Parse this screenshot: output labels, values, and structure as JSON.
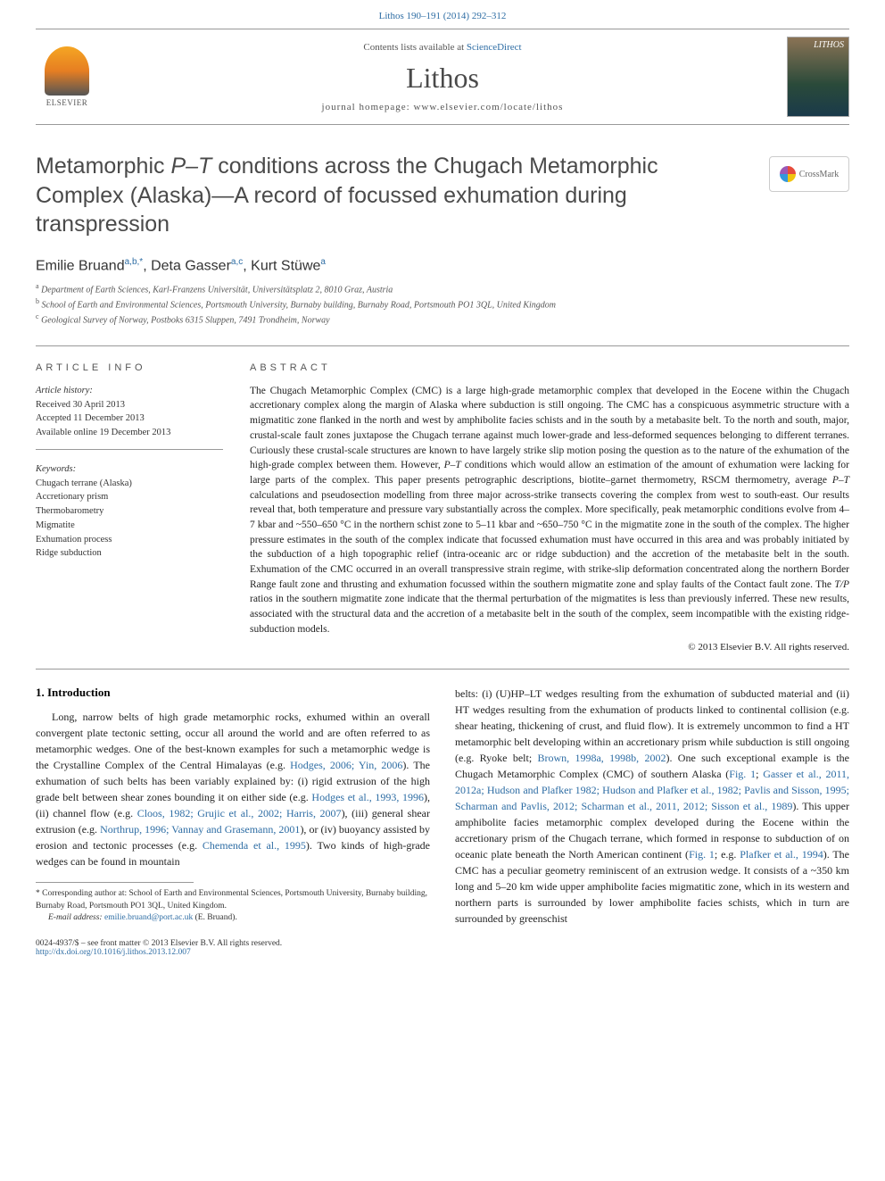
{
  "header": {
    "citation_link": "Lithos 190–191 (2014) 292–312",
    "contents_text_prefix": "Contents lists available at ",
    "contents_link": "ScienceDirect",
    "journal_name": "Lithos",
    "homepage_label": "journal homepage: ",
    "homepage_url": "www.elsevier.com/locate/lithos",
    "elsevier_label": "ELSEVIER",
    "cover_label": "LITHOS"
  },
  "article": {
    "title_pre": "Metamorphic ",
    "title_pt": "P–T",
    "title_post": " conditions across the Chugach Metamorphic Complex (Alaska)—A record of focussed exhumation during transpression",
    "crossmark": "CrossMark"
  },
  "authors": {
    "a1_name": "Emilie Bruand",
    "a1_aff": "a,b,",
    "a1_star": "*",
    "sep1": ", ",
    "a2_name": "Deta Gasser",
    "a2_aff": "a,c",
    "sep2": ", ",
    "a3_name": "Kurt Stüwe",
    "a3_aff": "a"
  },
  "affiliations": {
    "a_sup": "a",
    "a_text": " Department of Earth Sciences, Karl-Franzens Universität, Universitätsplatz 2, 8010 Graz, Austria",
    "b_sup": "b",
    "b_text": " School of Earth and Environmental Sciences, Portsmouth University, Burnaby building, Burnaby Road, Portsmouth PO1 3QL, United Kingdom",
    "c_sup": "c",
    "c_text": " Geological Survey of Norway, Postboks 6315 Sluppen, 7491 Trondheim, Norway"
  },
  "article_info": {
    "heading": "article info",
    "history_label": "Article history:",
    "received": "Received 30 April 2013",
    "accepted": "Accepted 11 December 2013",
    "online": "Available online 19 December 2013",
    "keywords_label": "Keywords:",
    "kw1": "Chugach terrane (Alaska)",
    "kw2": "Accretionary prism",
    "kw3": "Thermobarometry",
    "kw4": "Migmatite",
    "kw5": "Exhumation process",
    "kw6": "Ridge subduction"
  },
  "abstract": {
    "heading": "abstract",
    "text_1": "The Chugach Metamorphic Complex (CMC) is a large high-grade metamorphic complex that developed in the Eocene within the Chugach accretionary complex along the margin of Alaska where subduction is still ongoing. The CMC has a conspicuous asymmetric structure with a migmatitic zone flanked in the north and west by amphibolite facies schists and in the south by a metabasite belt. To the north and south, major, crustal-scale fault zones juxtapose the Chugach terrane against much lower-grade and less-deformed sequences belonging to different terranes. Curiously these crustal-scale structures are known to have largely strike slip motion posing the question as to the nature of the exhumation of the high-grade complex between them. However, ",
    "pt1": "P–T",
    "text_2": " conditions which would allow an estimation of the amount of exhumation were lacking for large parts of the complex. This paper presents petrographic descriptions, biotite–garnet thermometry, RSCM thermometry, average ",
    "pt2": "P–T",
    "text_3": " calculations and pseudosection modelling from three major across-strike transects covering the complex from west to south-east. Our results reveal that, both temperature and pressure vary substantially across the complex. More specifically, peak metamorphic conditions evolve from 4–7 kbar and ~550–650 °C in the northern schist zone to 5–11 kbar and ~650–750 °C in the migmatite zone in the south of the complex. The higher pressure estimates in the south of the complex indicate that focussed exhumation must have occurred in this area and was probably initiated by the subduction of a high topographic relief (intra-oceanic arc or ridge subduction) and the accretion of the metabasite belt in the south. Exhumation of the CMC occurred in an overall transpressive strain regime, with strike-slip deformation concentrated along the northern Border Range fault zone and thrusting and exhumation focussed within the southern migmatite zone and splay faults of the Contact fault zone. The ",
    "tp": "T/P",
    "text_4": " ratios in the southern migmatite zone indicate that the thermal perturbation of the migmatites is less than previously inferred. These new results, associated with the structural data and the accretion of a metabasite belt in the south of the complex, seem incompatible with the existing ridge-subduction models.",
    "copyright": "© 2013 Elsevier B.V. All rights reserved."
  },
  "intro": {
    "heading": "1. Introduction",
    "col1_p1_a": "Long, narrow belts of high grade metamorphic rocks, exhumed within an overall convergent plate tectonic setting, occur all around the world and are often referred to as metamorphic wedges. One of the best-known examples for such a metamorphic wedge is the Crystalline Complex of the Central Himalayas (e.g. ",
    "ref1": "Hodges, 2006; Yin, 2006",
    "col1_p1_b": "). The exhumation of such belts has been variably explained by: (i) rigid extrusion of the high grade belt between shear zones bounding it on either side (e.g. ",
    "ref2": "Hodges et al., 1993, 1996",
    "col1_p1_c": "), (ii) channel flow (e.g. ",
    "ref3": "Cloos, 1982; Grujic et al., 2002; Harris, 2007",
    "col1_p1_d": "), (iii) general shear extrusion (e.g. ",
    "ref4": "Northrup, 1996; Vannay and Grasemann, 2001",
    "col1_p1_e": "), or (iv) buoyancy assisted by erosion and tectonic processes (e.g. ",
    "ref5": "Chemenda et al., 1995",
    "col1_p1_f": "). Two kinds of high-grade wedges can be found in mountain",
    "col2_p1_a": "belts: (i) (U)HP–LT wedges resulting from the exhumation of subducted material and (ii) HT wedges resulting from the exhumation of products linked to continental collision (e.g. shear heating, thickening of crust, and fluid flow). It is extremely uncommon to find a HT metamorphic belt developing within an accretionary prism while subduction is still ongoing (e.g. Ryoke belt; ",
    "ref6": "Brown, 1998a, 1998b, 2002",
    "col2_p1_b": "). One such exceptional example is the Chugach Metamorphic Complex (CMC) of southern Alaska (",
    "ref7": "Fig. 1",
    "col2_p1_c": "; ",
    "ref8": "Gasser et al., 2011, 2012a; Hudson and Plafker 1982; Hudson and Plafker et al., 1982; Pavlis and Sisson, 1995; Scharman and Pavlis, 2012; Scharman et al., 2011, 2012; Sisson et al., 1989",
    "col2_p1_d": "). This upper amphibolite facies metamorphic complex developed during the Eocene within the accretionary prism of the Chugach terrane, which formed in response to subduction of on oceanic plate beneath the North American continent (",
    "ref9": "Fig. 1",
    "col2_p1_e": "; e.g. ",
    "ref10": "Plafker et al., 1994",
    "col2_p1_f": "). The CMC has a peculiar geometry reminiscent of an extrusion wedge. It consists of a ~350 km long and 5–20 km wide upper amphibolite facies migmatitic zone, which in its western and northern parts is surrounded by lower amphibolite facies schists, which in turn are surrounded by greenschist"
  },
  "footnote": {
    "star": "*",
    "text": " Corresponding author at: School of Earth and Environmental Sciences, Portsmouth University, Burnaby building, Burnaby Road, Portsmouth PO1 3QL, United Kingdom.",
    "email_label": "E-mail address: ",
    "email": "emilie.bruand@port.ac.uk",
    "email_suffix": " (E. Bruand)."
  },
  "footer": {
    "line1": "0024-4937/$ – see front matter © 2013 Elsevier B.V. All rights reserved.",
    "doi": "http://dx.doi.org/10.1016/j.lithos.2013.12.007"
  }
}
